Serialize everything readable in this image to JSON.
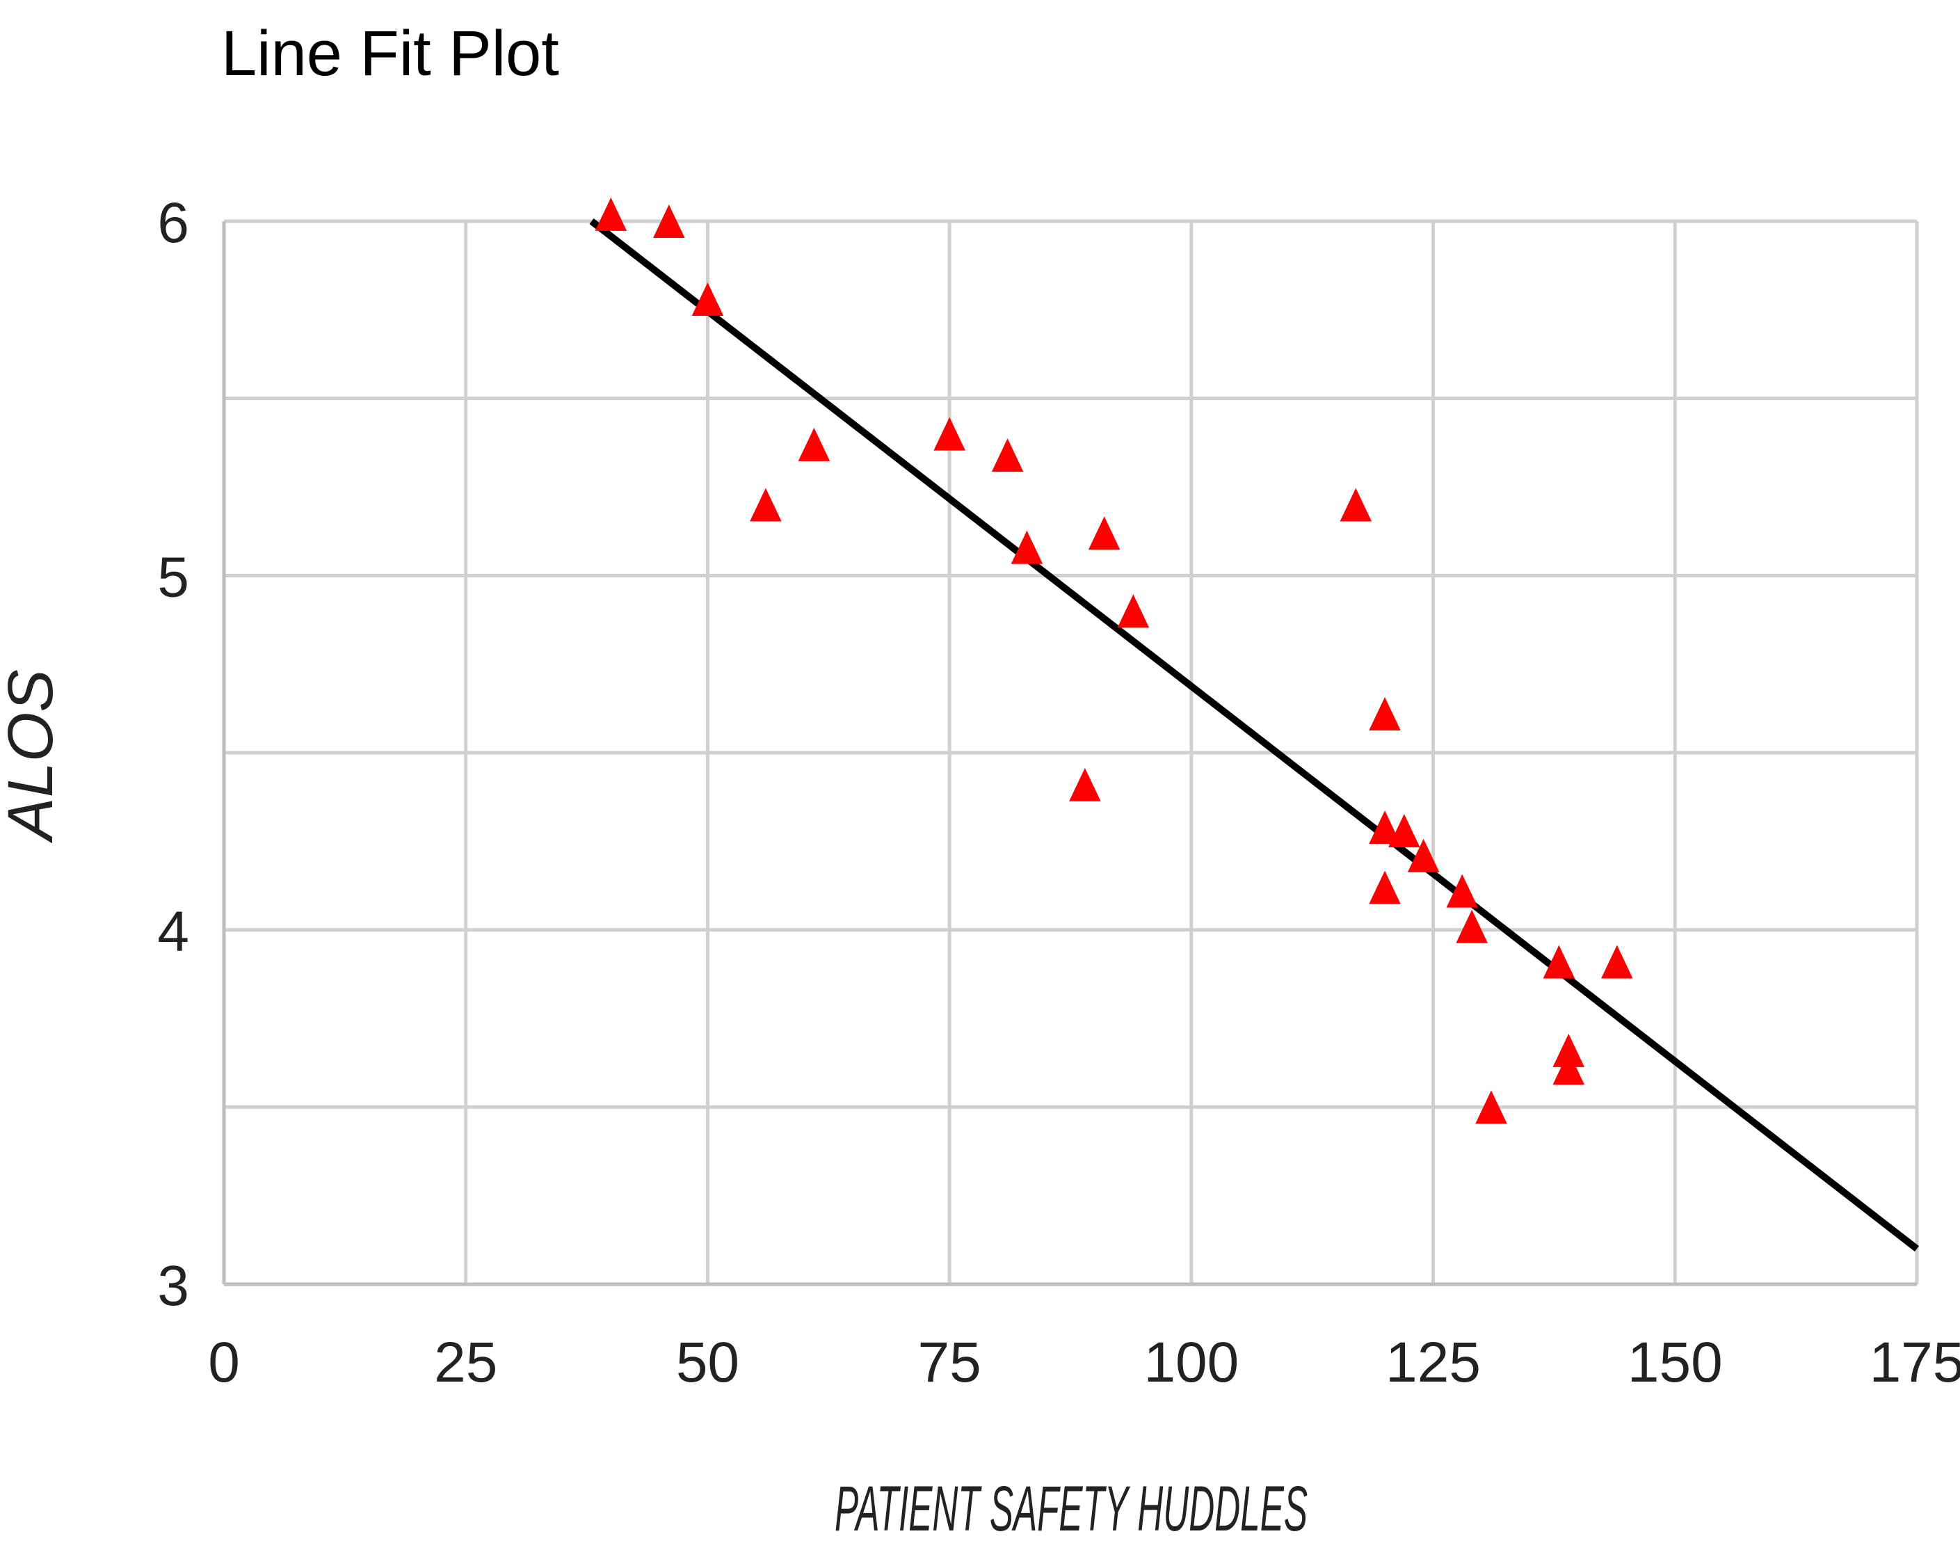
{
  "chart_data": {
    "type": "scatter",
    "title": "Line Fit Plot",
    "xlabel": "PATIENT SAFETY HUDDLES",
    "ylabel": "ALOS",
    "xlim": [
      0,
      175
    ],
    "ylim": [
      3,
      6
    ],
    "x_ticks": [
      0,
      25,
      50,
      75,
      100,
      125,
      150,
      175
    ],
    "y_ticks": [
      3,
      4,
      5,
      6
    ],
    "y_minor_gridlines": [
      3.5,
      4.5,
      5.5
    ],
    "grid": true,
    "legend": "none",
    "marker": "triangle",
    "marker_color": "#ff0000",
    "line_color": "#000000",
    "series": [
      {
        "points": [
          {
            "x": 40,
            "y": 6.02
          },
          {
            "x": 46,
            "y": 6.0
          },
          {
            "x": 50,
            "y": 5.78
          },
          {
            "x": 56,
            "y": 5.2
          },
          {
            "x": 61,
            "y": 5.37
          },
          {
            "x": 75,
            "y": 5.4
          },
          {
            "x": 81,
            "y": 5.34
          },
          {
            "x": 83,
            "y": 5.08
          },
          {
            "x": 89,
            "y": 4.41
          },
          {
            "x": 91,
            "y": 5.12
          },
          {
            "x": 94,
            "y": 4.9
          },
          {
            "x": 117,
            "y": 5.2
          },
          {
            "x": 120,
            "y": 4.61
          },
          {
            "x": 120,
            "y": 4.29
          },
          {
            "x": 120,
            "y": 4.12
          },
          {
            "x": 122,
            "y": 4.28
          },
          {
            "x": 124,
            "y": 4.21
          },
          {
            "x": 128,
            "y": 4.11
          },
          {
            "x": 129,
            "y": 4.01
          },
          {
            "x": 131,
            "y": 3.5
          },
          {
            "x": 138,
            "y": 3.91
          },
          {
            "x": 139,
            "y": 3.66
          },
          {
            "x": 139,
            "y": 3.61
          },
          {
            "x": 144,
            "y": 3.91
          }
        ]
      }
    ],
    "fit_line": [
      {
        "x": 38,
        "y": 6.0
      },
      {
        "x": 175,
        "y": 3.1
      }
    ]
  }
}
